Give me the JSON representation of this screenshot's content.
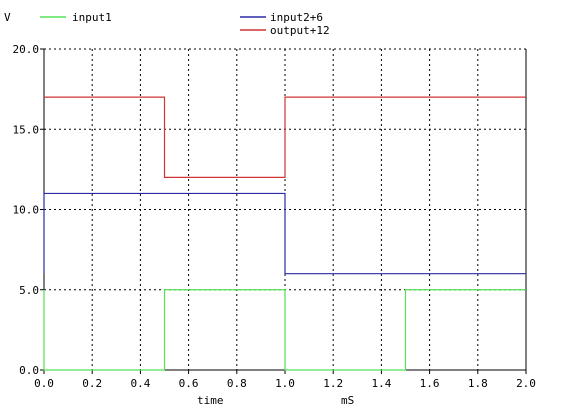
{
  "chart_data": {
    "type": "line",
    "xlabel": "time",
    "xunit": "mS",
    "yunit": "V",
    "xlim": [
      0.0,
      2.0
    ],
    "ylim": [
      0.0,
      20.0
    ],
    "x_ticks": [
      "0.0",
      "0.2",
      "0.4",
      "0.6",
      "0.8",
      "1.0",
      "1.2",
      "1.4",
      "1.6",
      "1.8",
      "2.0"
    ],
    "y_ticks": [
      "0.0",
      "5.0",
      "10.0",
      "15.0",
      "20.0"
    ],
    "grid": true,
    "step": true,
    "series": [
      {
        "name": "input1",
        "color": "#55e055",
        "points": [
          [
            0.0,
            5.0
          ],
          [
            0.0,
            0.0
          ],
          [
            0.5,
            0.0
          ],
          [
            0.5,
            5.0
          ],
          [
            1.0,
            5.0
          ],
          [
            1.0,
            0.0
          ],
          [
            1.5,
            0.0
          ],
          [
            1.5,
            5.0
          ],
          [
            2.0,
            5.0
          ]
        ]
      },
      {
        "name": "input2+6",
        "color": "#2a2aa8",
        "points": [
          [
            0.0,
            6.0
          ],
          [
            0.0,
            11.0
          ],
          [
            1.0,
            11.0
          ],
          [
            1.0,
            6.0
          ],
          [
            2.0,
            6.0
          ]
        ]
      },
      {
        "name": "output+12",
        "color": "#d03434",
        "points": [
          [
            0.0,
            17.0
          ],
          [
            0.5,
            17.0
          ],
          [
            0.5,
            12.0
          ],
          [
            1.0,
            12.0
          ],
          [
            1.0,
            17.0
          ],
          [
            2.0,
            17.0
          ]
        ]
      }
    ]
  }
}
